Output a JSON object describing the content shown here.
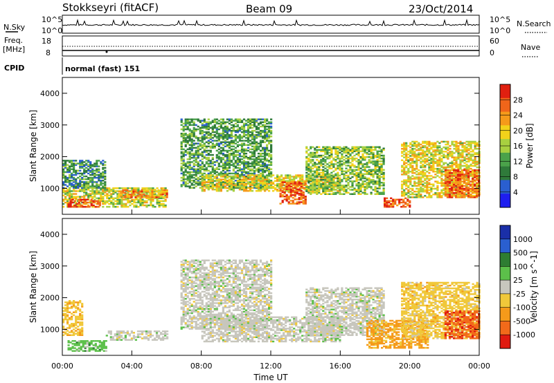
{
  "header": {
    "station": "Stokkseyri (fitACF)",
    "beam": "Beam 09",
    "date": "23/Oct/2014"
  },
  "sky_panel": {
    "left_label": "N.Sky",
    "right_label": "N.Search",
    "left_ticks": [
      "10^5",
      "10^0"
    ],
    "right_ticks": [
      "10^5",
      "10^0"
    ]
  },
  "freq_panel": {
    "left_label_1": "Freq.",
    "left_label_2": "[MHz]",
    "left_ticks": [
      "18",
      "8"
    ],
    "right_label": "Nave",
    "right_ticks": [
      "60",
      "0"
    ],
    "cpid_label": "CPID",
    "cpid_value": "normal (fast) 151"
  },
  "colors": {
    "power_scale": [
      "#1e1eef",
      "#2a5fd0",
      "#2f7a3a",
      "#4aa24a",
      "#a8d040",
      "#f2d21a",
      "#f59a1a",
      "#f0651a",
      "#e02010"
    ],
    "velocity_scale": [
      "#1a2fa8",
      "#2a5fd0",
      "#2e7d32",
      "#5cc04a",
      "#c7c6bd",
      "#f0c83a",
      "#f59a1a",
      "#f26a1a",
      "#e01a10"
    ]
  },
  "chart_data": [
    {
      "type": "heatmap",
      "title": "Power",
      "xlabel": "Time UT",
      "ylabel": "Slant Range [km]",
      "x_ticks": [
        "00:00",
        "04:00",
        "08:00",
        "12:00",
        "16:00",
        "20:00",
        "00:00"
      ],
      "y_ticks": [
        "1000",
        "2000",
        "3000",
        "4000"
      ],
      "xlim_hours": [
        0,
        24
      ],
      "ylim_km": [
        180,
        4500
      ],
      "colorbar": {
        "label": "Power [dB]",
        "ticks": [
          "28",
          "24",
          "20",
          "16",
          "12",
          "8",
          "4"
        ],
        "range": [
          0,
          30
        ]
      },
      "echo_regions": [
        {
          "t0": 0.0,
          "t1": 6.0,
          "r0": 400,
          "r1": 1000,
          "level": 0.55
        },
        {
          "t0": 0.3,
          "t1": 2.2,
          "r0": 400,
          "r1": 650,
          "level": 0.9
        },
        {
          "t0": 0.0,
          "t1": 2.5,
          "r0": 1000,
          "r1": 1900,
          "level": 0.3
        },
        {
          "t0": 3.2,
          "t1": 6.0,
          "r0": 700,
          "r1": 950,
          "level": 0.78
        },
        {
          "t0": 6.8,
          "t1": 12.0,
          "r0": 1000,
          "r1": 3200,
          "level": 0.35
        },
        {
          "t0": 8.0,
          "t1": 16.0,
          "r0": 900,
          "r1": 1400,
          "level": 0.6
        },
        {
          "t0": 12.5,
          "t1": 14.0,
          "r0": 500,
          "r1": 1200,
          "level": 0.88
        },
        {
          "t0": 14.0,
          "t1": 18.5,
          "r0": 800,
          "r1": 2300,
          "level": 0.45
        },
        {
          "t0": 18.5,
          "t1": 20.0,
          "r0": 400,
          "r1": 700,
          "level": 0.9
        },
        {
          "t0": 19.5,
          "t1": 24.0,
          "r0": 700,
          "r1": 2500,
          "level": 0.6
        },
        {
          "t0": 22.0,
          "t1": 24.0,
          "r0": 700,
          "r1": 1600,
          "level": 0.85
        }
      ]
    },
    {
      "type": "heatmap",
      "title": "Velocity",
      "xlabel": "Time UT",
      "ylabel": "Slant Range [km]",
      "x_ticks": [
        "00:00",
        "04:00",
        "08:00",
        "12:00",
        "16:00",
        "20:00",
        "00:00"
      ],
      "y_ticks": [
        "1000",
        "2000",
        "3000",
        "4000"
      ],
      "xlim_hours": [
        0,
        24
      ],
      "ylim_km": [
        180,
        4500
      ],
      "colorbar": {
        "label": "Velocity [m s^-1]",
        "ticks": [
          "1000",
          "500",
          "100",
          "25",
          "-25",
          "-100",
          "-500",
          "-1000"
        ],
        "range": [
          -1000,
          1000
        ]
      },
      "echo_regions": [
        {
          "t0": 0.0,
          "t1": 1.2,
          "r0": 800,
          "r1": 1900,
          "level": -300
        },
        {
          "t0": 0.3,
          "t1": 2.5,
          "r0": 300,
          "r1": 650,
          "level": 250
        },
        {
          "t0": 2.5,
          "t1": 6.0,
          "r0": 650,
          "r1": 950,
          "level": 0
        },
        {
          "t0": 6.8,
          "t1": 12.0,
          "r0": 1000,
          "r1": 3200,
          "level": 0
        },
        {
          "t0": 8.0,
          "t1": 16.0,
          "r0": 600,
          "r1": 1400,
          "level": 0
        },
        {
          "t0": 14.0,
          "t1": 18.5,
          "r0": 800,
          "r1": 2300,
          "level": 0
        },
        {
          "t0": 17.5,
          "t1": 21.0,
          "r0": 400,
          "r1": 1300,
          "level": -450
        },
        {
          "t0": 19.5,
          "t1": 24.0,
          "r0": 700,
          "r1": 2500,
          "level": -250
        },
        {
          "t0": 22.0,
          "t1": 24.0,
          "r0": 700,
          "r1": 1600,
          "level": -800
        }
      ]
    }
  ]
}
